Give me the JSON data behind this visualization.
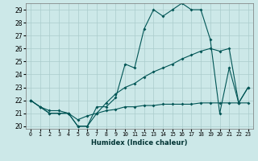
{
  "xlabel": "Humidex (Indice chaleur)",
  "bg_color": "#cce8e8",
  "grid_color": "#aacccc",
  "line_color": "#005555",
  "xlim": [
    -0.5,
    23.5
  ],
  "ylim": [
    19.8,
    29.5
  ],
  "xticks": [
    0,
    1,
    2,
    3,
    4,
    5,
    6,
    7,
    8,
    9,
    10,
    11,
    12,
    13,
    14,
    15,
    16,
    17,
    18,
    19,
    20,
    21,
    22,
    23
  ],
  "yticks": [
    20,
    21,
    22,
    23,
    24,
    25,
    26,
    27,
    28,
    29
  ],
  "line1_x": [
    0,
    1,
    2,
    3,
    4,
    5,
    6,
    7,
    8,
    9,
    10,
    11,
    12,
    13,
    14,
    15,
    16,
    17,
    18,
    19,
    20,
    21,
    22,
    23
  ],
  "line1_y": [
    22.0,
    21.5,
    21.0,
    21.0,
    21.0,
    20.0,
    20.0,
    21.5,
    21.5,
    22.2,
    24.8,
    24.5,
    27.5,
    29.0,
    28.5,
    29.0,
    29.5,
    29.0,
    29.0,
    26.7,
    21.0,
    24.5,
    21.8,
    23.0
  ],
  "line2_x": [
    0,
    1,
    2,
    3,
    4,
    5,
    6,
    7,
    8,
    9,
    10,
    11,
    12,
    13,
    14,
    15,
    16,
    17,
    18,
    19,
    20,
    21,
    22,
    23
  ],
  "line2_y": [
    22.0,
    21.5,
    21.2,
    21.2,
    21.0,
    20.5,
    20.8,
    21.0,
    21.8,
    22.5,
    23.0,
    23.3,
    23.8,
    24.2,
    24.5,
    24.8,
    25.2,
    25.5,
    25.8,
    26.0,
    25.8,
    26.0,
    21.8,
    23.0
  ],
  "line3_x": [
    0,
    1,
    2,
    3,
    4,
    5,
    6,
    7,
    8,
    9,
    10,
    11,
    12,
    13,
    14,
    15,
    16,
    17,
    18,
    19,
    20,
    21,
    22,
    23
  ],
  "line3_y": [
    22.0,
    21.5,
    21.0,
    21.0,
    21.0,
    20.0,
    20.0,
    21.0,
    21.2,
    21.3,
    21.5,
    21.5,
    21.6,
    21.6,
    21.7,
    21.7,
    21.7,
    21.7,
    21.8,
    21.8,
    21.8,
    21.8,
    21.8,
    21.8
  ]
}
